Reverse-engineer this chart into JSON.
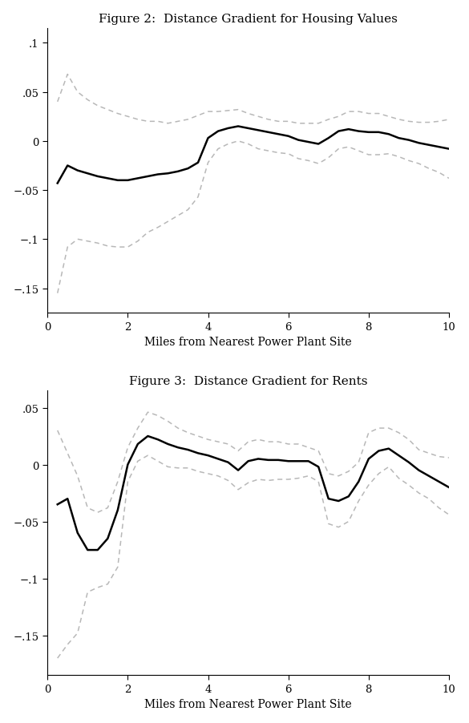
{
  "fig1_title": "Figure 2:  Distance Gradient for Housing Values",
  "fig2_title": "Figure 3:  Distance Gradient for Rents",
  "xlabel": "Miles from Nearest Power Plant Site",
  "fig1_ylim": [
    -0.175,
    0.115
  ],
  "fig2_ylim": [
    -0.185,
    0.065
  ],
  "fig1_yticks": [
    0.1,
    0.05,
    0,
    -0.05,
    -0.1,
    -0.15
  ],
  "fig2_yticks": [
    0.05,
    0,
    -0.05,
    -0.1,
    -0.15
  ],
  "xlim": [
    0,
    10
  ],
  "xticks": [
    0,
    2,
    4,
    6,
    8,
    10
  ],
  "main_color": "#000000",
  "ci_color": "#b8b8b8",
  "main_lw": 1.8,
  "ci_lw": 1.1,
  "ci_dash": [
    4,
    3
  ],
  "fig1_x": [
    0.25,
    0.5,
    0.75,
    1.0,
    1.25,
    1.5,
    1.75,
    2.0,
    2.25,
    2.5,
    2.75,
    3.0,
    3.25,
    3.5,
    3.75,
    4.0,
    4.25,
    4.5,
    4.75,
    5.0,
    5.25,
    5.5,
    5.75,
    6.0,
    6.25,
    6.5,
    6.75,
    7.0,
    7.25,
    7.5,
    7.75,
    8.0,
    8.25,
    8.5,
    8.75,
    9.0,
    9.25,
    9.5,
    9.75,
    10.0
  ],
  "fig1_main": [
    -0.043,
    -0.025,
    -0.03,
    -0.033,
    -0.036,
    -0.038,
    -0.04,
    -0.04,
    -0.038,
    -0.036,
    -0.034,
    -0.033,
    -0.031,
    -0.028,
    -0.022,
    0.003,
    0.01,
    0.013,
    0.015,
    0.013,
    0.011,
    0.009,
    0.007,
    0.005,
    0.001,
    -0.001,
    -0.003,
    0.003,
    0.01,
    0.012,
    0.01,
    0.009,
    0.009,
    0.007,
    0.003,
    0.001,
    -0.002,
    -0.004,
    -0.006,
    -0.008
  ],
  "fig1_upper": [
    0.04,
    0.068,
    0.05,
    0.042,
    0.036,
    0.032,
    0.028,
    0.025,
    0.022,
    0.02,
    0.02,
    0.018,
    0.02,
    0.022,
    0.026,
    0.03,
    0.03,
    0.031,
    0.032,
    0.028,
    0.025,
    0.022,
    0.02,
    0.02,
    0.018,
    0.018,
    0.018,
    0.022,
    0.025,
    0.03,
    0.03,
    0.028,
    0.028,
    0.025,
    0.022,
    0.02,
    0.019,
    0.019,
    0.02,
    0.022
  ],
  "fig1_lower": [
    -0.155,
    -0.108,
    -0.1,
    -0.102,
    -0.104,
    -0.107,
    -0.108,
    -0.108,
    -0.102,
    -0.093,
    -0.088,
    -0.082,
    -0.076,
    -0.07,
    -0.057,
    -0.022,
    -0.008,
    -0.003,
    0.0,
    -0.003,
    -0.008,
    -0.01,
    -0.012,
    -0.013,
    -0.018,
    -0.02,
    -0.023,
    -0.017,
    -0.008,
    -0.006,
    -0.01,
    -0.014,
    -0.014,
    -0.013,
    -0.016,
    -0.02,
    -0.023,
    -0.028,
    -0.032,
    -0.038
  ],
  "fig2_x": [
    0.25,
    0.5,
    0.75,
    1.0,
    1.25,
    1.5,
    1.75,
    2.0,
    2.25,
    2.5,
    2.75,
    3.0,
    3.25,
    3.5,
    3.75,
    4.0,
    4.25,
    4.5,
    4.75,
    5.0,
    5.25,
    5.5,
    5.75,
    6.0,
    6.25,
    6.5,
    6.75,
    7.0,
    7.25,
    7.5,
    7.75,
    8.0,
    8.25,
    8.5,
    8.75,
    9.0,
    9.25,
    9.5,
    9.75,
    10.0
  ],
  "fig2_main": [
    -0.035,
    -0.03,
    -0.06,
    -0.075,
    -0.075,
    -0.065,
    -0.04,
    0.0,
    0.018,
    0.025,
    0.022,
    0.018,
    0.015,
    0.013,
    0.01,
    0.008,
    0.005,
    0.002,
    -0.005,
    0.003,
    0.005,
    0.004,
    0.004,
    0.003,
    0.003,
    0.003,
    -0.002,
    -0.03,
    -0.032,
    -0.028,
    -0.015,
    0.005,
    0.012,
    0.014,
    0.008,
    0.002,
    -0.005,
    -0.01,
    -0.015,
    -0.02
  ],
  "fig2_upper": [
    0.03,
    0.01,
    -0.01,
    -0.038,
    -0.042,
    -0.038,
    -0.015,
    0.015,
    0.032,
    0.046,
    0.043,
    0.038,
    0.032,
    0.028,
    0.025,
    0.022,
    0.02,
    0.018,
    0.012,
    0.02,
    0.022,
    0.02,
    0.02,
    0.018,
    0.018,
    0.015,
    0.012,
    -0.008,
    -0.01,
    -0.006,
    0.002,
    0.028,
    0.032,
    0.032,
    0.028,
    0.022,
    0.013,
    0.01,
    0.007,
    0.006
  ],
  "fig2_lower": [
    -0.17,
    -0.158,
    -0.148,
    -0.112,
    -0.108,
    -0.105,
    -0.09,
    -0.015,
    0.003,
    0.008,
    0.003,
    -0.002,
    -0.003,
    -0.003,
    -0.006,
    -0.008,
    -0.01,
    -0.014,
    -0.022,
    -0.016,
    -0.013,
    -0.014,
    -0.013,
    -0.013,
    -0.012,
    -0.01,
    -0.015,
    -0.052,
    -0.055,
    -0.05,
    -0.032,
    -0.018,
    -0.008,
    -0.002,
    -0.012,
    -0.018,
    -0.025,
    -0.03,
    -0.038,
    -0.044
  ],
  "bg_color": "#ffffff",
  "font_family": "DejaVu Serif",
  "title_fontsize": 11,
  "tick_fontsize": 9.5,
  "label_fontsize": 10
}
